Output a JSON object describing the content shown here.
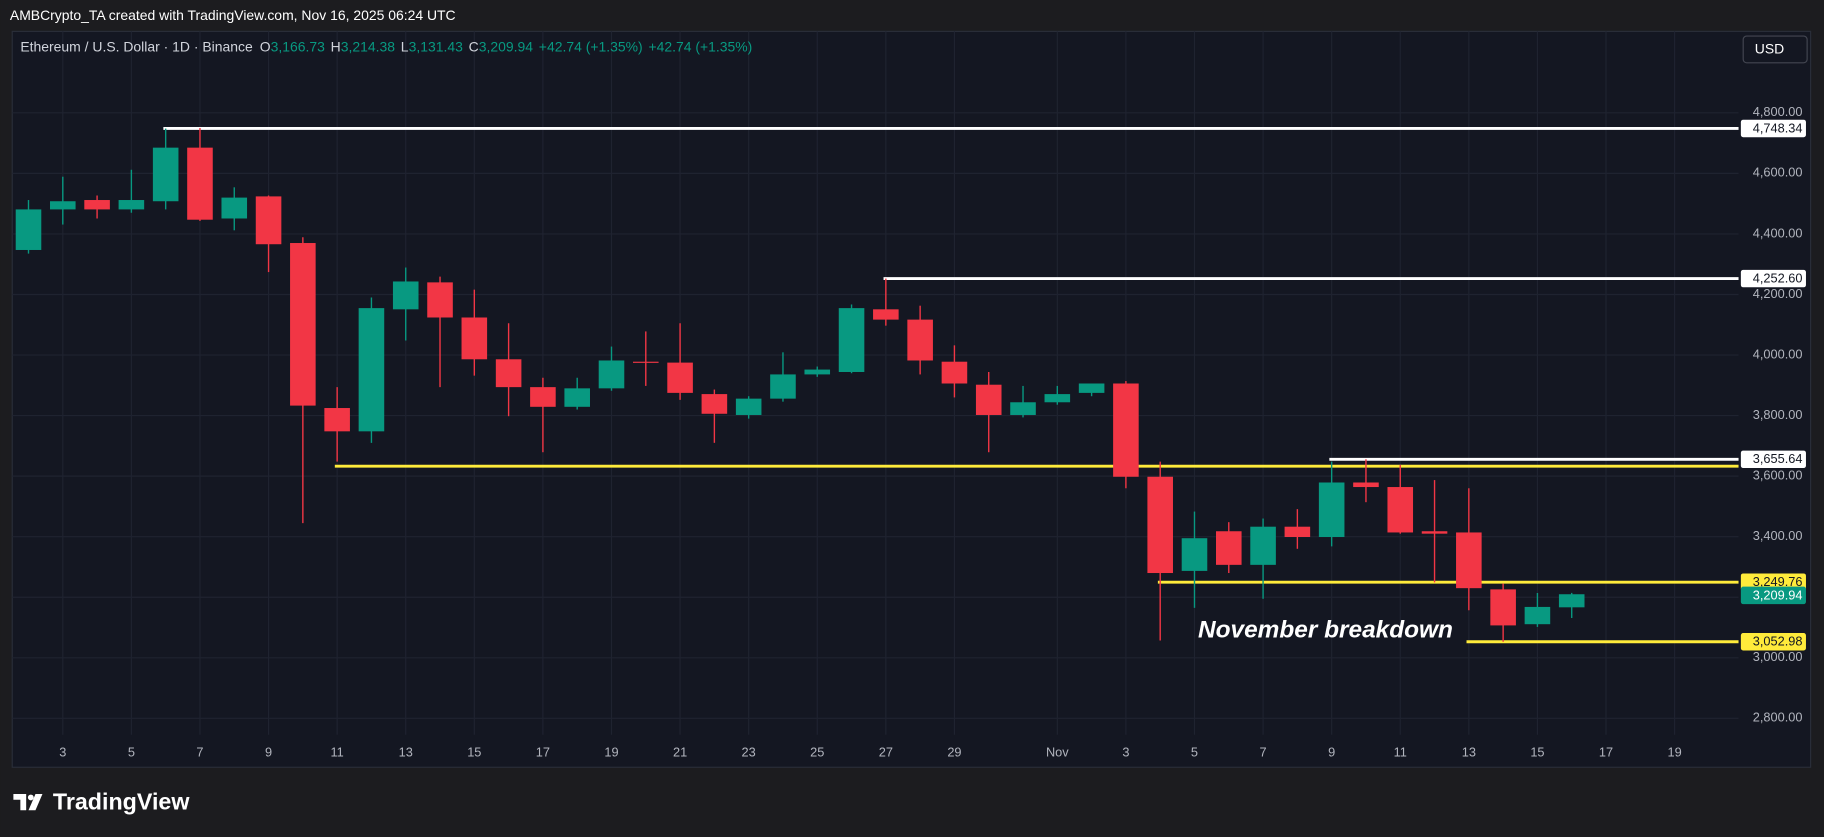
{
  "header": "AMBCrypto_TA created with TradingView.com, Nov 16, 2025 06:24 UTC",
  "brand": "TradingView",
  "currency": "USD",
  "chart_data": {
    "type": "candlestick",
    "title": "Ethereum / U.S. Dollar · 1D · Binance",
    "legend": [
      {
        "key": "O",
        "text": "3,166.73"
      },
      {
        "key": "H",
        "text": "3,214.38"
      },
      {
        "key": "L",
        "text": "3,131.43"
      },
      {
        "key": "C",
        "text": "3,209.94"
      },
      {
        "key": "",
        "text": "+42.74 (+1.35%)"
      },
      {
        "key": "",
        "text": "+42.74 (+1.35%)"
      }
    ],
    "annotation": "November breakdown",
    "up_color": "#089981",
    "down_color": "#f23645",
    "categories": [
      null,
      "3",
      null,
      "5",
      null,
      "7",
      null,
      "9",
      null,
      "11",
      null,
      "13",
      null,
      "15",
      null,
      "17",
      null,
      "19",
      null,
      "21",
      null,
      "23",
      null,
      "25",
      null,
      "27",
      null,
      "29",
      null,
      null,
      "Nov",
      null,
      "3",
      null,
      "5",
      null,
      "7",
      null,
      "9",
      null,
      "11",
      null,
      "13",
      null,
      "15",
      null,
      "17",
      null,
      "19"
    ],
    "open": [
      4347,
      4481,
      4512,
      4481,
      4508,
      4685,
      4451,
      4524,
      4370,
      3825,
      3748,
      4151,
      4240,
      4124,
      3986,
      3894,
      3829,
      3890,
      3978,
      3975,
      3871,
      3802,
      3856,
      3936,
      3944,
      4151,
      4117,
      3978,
      3902,
      3802,
      3844,
      3875,
      3906,
      3598,
      3287,
      3418,
      3307,
      3433,
      3399,
      3579,
      3564,
      3418,
      3414,
      3226,
      3111,
      3166.73,
      null,
      null,
      null
    ],
    "high": [
      4512,
      4589,
      4527,
      4612,
      4748,
      4750,
      4554,
      4527,
      4389,
      3894,
      4190,
      4289,
      4259,
      4216,
      4105,
      3925,
      3925,
      4028,
      4078,
      4105,
      3886,
      3864,
      4009,
      3962,
      4167,
      4252.6,
      4163,
      4032,
      3944,
      3898,
      3898,
      3890,
      3914,
      3648,
      3483,
      3448,
      3460,
      3491,
      3648,
      3655.64,
      3637,
      3587,
      3560,
      3245,
      3214,
      3214.38,
      null,
      null,
      null
    ],
    "low": [
      4335,
      4431,
      4451,
      4470,
      4481,
      4443,
      4412,
      4274,
      3445,
      3648,
      3710,
      4048,
      3894,
      3932,
      3798,
      3679,
      3820,
      3882,
      3898,
      3852,
      3710,
      3790,
      3846,
      3928,
      3940,
      4097,
      3936,
      3860,
      3679,
      3794,
      3836,
      3864,
      3560,
      3057,
      3165,
      3280,
      3195,
      3360,
      3368,
      3514,
      3410,
      3249,
      3157,
      3053,
      3102,
      3131.43,
      null,
      null,
      null
    ],
    "close": [
      4481,
      4508,
      4481,
      4512,
      4685,
      4447,
      4520,
      4366,
      3833,
      3748,
      4155,
      4243,
      4124,
      3986,
      3894,
      3829,
      3890,
      3982,
      3975,
      3875,
      3806,
      3856,
      3936,
      3952,
      4155,
      4117,
      3982,
      3906,
      3802,
      3844,
      3871,
      3906,
      3598,
      3280,
      3395,
      3307,
      3433,
      3399,
      3579,
      3564,
      3414,
      3410,
      3230,
      3107,
      3168,
      3209.94,
      null,
      null,
      null
    ],
    "last_label": "3,209.94",
    "levels": [
      {
        "value": 4748.34,
        "value_label": "4,748.34",
        "color": "#ffffff"
      },
      {
        "value": 4252.6,
        "value_label": "4,252.60",
        "color": "#ffffff"
      },
      {
        "value": 3655.64,
        "value_label": "3,655.64",
        "color": "#ffffff"
      },
      {
        "value": 3633,
        "color": "#ffeb3b"
      },
      {
        "value": 3249.76,
        "value_label": "3,249.76",
        "color": "#ffeb3b"
      },
      {
        "value": 3052.98,
        "value_label": "3,052.98",
        "color": "#ffeb3b"
      }
    ],
    "ylim": [
      2746,
      5069
    ],
    "yticks": [
      {
        "value": 2800,
        "label": "2,800.00"
      },
      {
        "value": 3000,
        "label": "3,000.00"
      },
      {
        "value": 3200,
        "label": "3,200.00"
      },
      {
        "value": 3400,
        "label": "3,400.00"
      },
      {
        "value": 3600,
        "label": "3,600.00"
      },
      {
        "value": 3800,
        "label": "3,800.00"
      },
      {
        "value": 4000,
        "label": "4,000.00"
      },
      {
        "value": 4200,
        "label": "4,200.00"
      },
      {
        "value": 4400,
        "label": "4,400.00"
      },
      {
        "value": 4600,
        "label": "4,600.00"
      },
      {
        "value": 4800,
        "label": "4,800.00"
      }
    ],
    "grid": true
  }
}
